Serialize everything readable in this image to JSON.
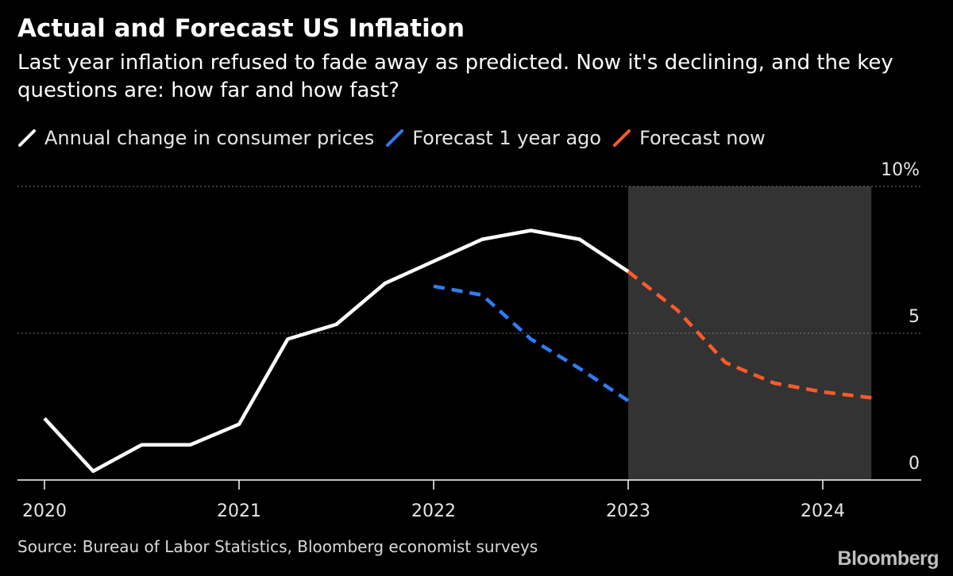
{
  "header": {
    "title": "Actual and Forecast US Inflation",
    "subtitle": "Last year inflation refused to fade away as predicted. Now it's declining, and the key questions are: how far and how fast?"
  },
  "legend": [
    {
      "label": "Annual change in consumer prices",
      "color": "#ffffff",
      "icon": "line-swatch-icon"
    },
    {
      "label": "Forecast 1 year ago",
      "color": "#2f7cf6",
      "icon": "line-swatch-icon"
    },
    {
      "label": "Forecast now",
      "color": "#ff5a2b",
      "icon": "line-swatch-icon"
    }
  ],
  "footer": {
    "source": "Source: Bureau of Labor Statistics, Bloomberg economist surveys",
    "brand": "Bloomberg"
  },
  "colors": {
    "background": "#000000",
    "shade": "#333333",
    "actual": "#ffffff",
    "forecast_year_ago": "#2f7cf6",
    "forecast_now": "#ff5a2b",
    "grid": "#777777"
  },
  "chart_data": {
    "type": "line",
    "x_ticks": [
      {
        "value": 2020,
        "label": "2020"
      },
      {
        "value": 2021,
        "label": "2021"
      },
      {
        "value": 2022,
        "label": "2022"
      },
      {
        "value": 2023,
        "label": "2023"
      },
      {
        "value": 2024,
        "label": "2024"
      }
    ],
    "y_ticks": [
      {
        "value": 0,
        "label": "0"
      },
      {
        "value": 5,
        "label": "5"
      },
      {
        "value": 10,
        "label": "10%"
      }
    ],
    "xlim": [
      2019.85,
      2024.5
    ],
    "ylim": [
      0,
      10
    ],
    "grid": "horizontal dotted",
    "shaded_region": [
      2023.0,
      2024.25
    ],
    "series": [
      {
        "name": "Annual change in consumer prices",
        "style": "solid",
        "points": [
          [
            2020.0,
            2.1
          ],
          [
            2020.25,
            0.3
          ],
          [
            2020.5,
            1.2
          ],
          [
            2020.75,
            1.2
          ],
          [
            2021.0,
            1.9
          ],
          [
            2021.25,
            4.8
          ],
          [
            2021.5,
            5.3
          ],
          [
            2021.75,
            6.7
          ],
          [
            2022.25,
            8.2
          ],
          [
            2022.5,
            8.5
          ],
          [
            2022.75,
            8.2
          ],
          [
            2023.0,
            7.1
          ]
        ]
      },
      {
        "name": "Forecast 1 year ago",
        "style": "dashed",
        "points": [
          [
            2022.0,
            6.6
          ],
          [
            2022.25,
            6.3
          ],
          [
            2022.5,
            4.8
          ],
          [
            2022.75,
            3.8
          ],
          [
            2023.0,
            2.7
          ]
        ]
      },
      {
        "name": "Forecast now",
        "style": "dashed",
        "points": [
          [
            2023.0,
            7.1
          ],
          [
            2023.25,
            5.8
          ],
          [
            2023.5,
            4.0
          ],
          [
            2023.75,
            3.3
          ],
          [
            2024.0,
            3.0
          ],
          [
            2024.25,
            2.8
          ]
        ]
      }
    ]
  }
}
